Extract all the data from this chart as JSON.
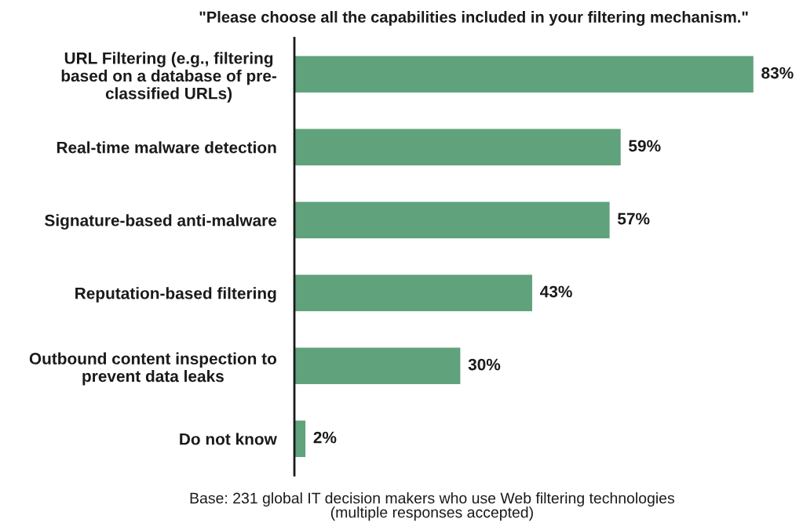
{
  "chart_data": {
    "type": "bar",
    "orientation": "horizontal",
    "title": "\"Please choose all the capabilities included in your filtering mechanism.\"",
    "categories": [
      "URL Filtering (e.g., filtering\nbased on a database of pre-\nclassified URLs)",
      "Real-time malware detection",
      "Signature-based anti-malware",
      "Reputation-based filtering",
      "Outbound content inspection to\nprevent data leaks",
      "Do not know"
    ],
    "values": [
      83,
      59,
      57,
      43,
      30,
      2
    ],
    "value_labels": [
      "83%",
      "59%",
      "57%",
      "43%",
      "30%",
      "2%"
    ],
    "color": "#5fa27b",
    "tick_labels": "y",
    "annotations": [
      "Base: 231 global IT decision makers who use Web filtering technologies\n(multiple responses accepted)"
    ]
  }
}
